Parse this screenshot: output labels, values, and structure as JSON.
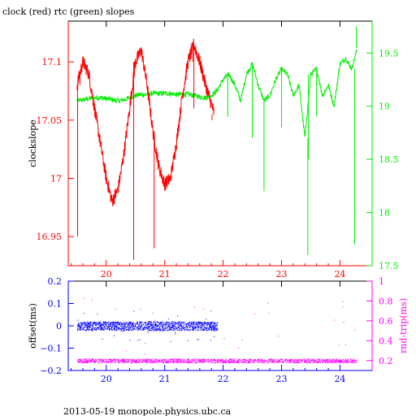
{
  "title": "clock (red) rtc (green) slopes",
  "footer": "2013-05-19  monopole.physics.ubc.ca",
  "colors": {
    "red": "#ff0000",
    "green": "#00ee00",
    "blue": "#0000ff",
    "magenta": "#ff00ff",
    "axis": "#000000"
  },
  "chart_data": [
    {
      "type": "line",
      "title": "clock (red) rtc (green) slopes",
      "xlabel": "",
      "ylabel": "clockslope",
      "y2label": "",
      "xlim": [
        19.35,
        24.55
      ],
      "ylim": [
        16.925,
        17.135
      ],
      "y2lim": [
        17.5,
        19.8
      ],
      "x_ticks": [
        20,
        21,
        22,
        23,
        24
      ],
      "y_ticks": [
        16.95,
        17,
        17.05,
        17.1
      ],
      "y_tick_labels": [
        "16.95",
        "17",
        "17.05",
        "17.1"
      ],
      "y2_ticks": [
        17.5,
        18,
        18.5,
        19,
        19.5
      ],
      "y2_tick_labels": [
        "17.5",
        "18",
        "18.5",
        "19",
        "19.5"
      ],
      "series": [
        {
          "axis": "left",
          "color": "#ff0000",
          "x": [
            19.5,
            19.6,
            19.7,
            19.8,
            19.9,
            20.0,
            20.1,
            20.2,
            20.3,
            20.4,
            20.5,
            20.6,
            20.7,
            20.8,
            20.9,
            21.0,
            21.1,
            21.2,
            21.3,
            21.4,
            21.5,
            21.6,
            21.7,
            21.85
          ],
          "y": [
            17.08,
            17.1,
            17.09,
            17.06,
            17.03,
            17.0,
            16.98,
            16.99,
            17.02,
            17.06,
            17.1,
            17.11,
            17.08,
            17.04,
            17.01,
            16.995,
            17.0,
            17.03,
            17.07,
            17.1,
            17.115,
            17.1,
            17.08,
            17.055
          ],
          "spikes": [
            {
              "x": 19.51,
              "y": 16.95
            },
            {
              "x": 19.55,
              "y": 17.09
            },
            {
              "x": 20.47,
              "y": 16.93
            },
            {
              "x": 20.48,
              "y": 17.09
            },
            {
              "x": 20.82,
              "y": 16.94
            },
            {
              "x": 21.48,
              "y": 17.1
            },
            {
              "x": 21.5,
              "y": 17.06
            },
            {
              "x": 21.81,
              "y": 17.05
            }
          ]
        },
        {
          "axis": "right",
          "color": "#00ee00",
          "x": [
            19.5,
            19.6,
            19.7,
            19.8,
            19.9,
            20.0,
            20.1,
            20.2,
            20.3,
            20.4,
            20.5,
            20.6,
            20.7,
            20.8,
            20.9,
            21.0,
            21.1,
            21.2,
            21.3,
            21.4,
            21.5,
            21.6,
            21.7,
            21.8,
            21.9,
            22.0,
            22.1,
            22.2,
            22.3,
            22.4,
            22.5,
            22.6,
            22.7,
            22.8,
            22.9,
            23.0,
            23.1,
            23.2,
            23.3,
            23.4,
            23.5,
            23.6,
            23.7,
            23.8,
            23.9,
            24.0,
            24.1,
            24.2,
            24.3
          ],
          "y": [
            19.05,
            19.06,
            19.07,
            19.08,
            19.08,
            19.07,
            19.06,
            19.05,
            19.06,
            19.08,
            19.1,
            19.11,
            19.11,
            19.12,
            19.12,
            19.12,
            19.12,
            19.11,
            19.11,
            19.11,
            19.1,
            19.09,
            19.08,
            19.1,
            19.15,
            19.25,
            19.3,
            19.2,
            19.05,
            19.3,
            19.4,
            19.2,
            19.05,
            19.1,
            19.25,
            19.35,
            19.3,
            19.1,
            19.2,
            18.7,
            19.3,
            19.35,
            19.1,
            19.2,
            19.0,
            19.4,
            19.45,
            19.35,
            19.55
          ],
          "spikes": [
            {
              "x": 22.08,
              "y": 18.9
            },
            {
              "x": 22.5,
              "y": 18.7
            },
            {
              "x": 22.7,
              "y": 18.2
            },
            {
              "x": 23.0,
              "y": 18.8
            },
            {
              "x": 23.45,
              "y": 17.6
            },
            {
              "x": 23.46,
              "y": 18.5
            },
            {
              "x": 23.6,
              "y": 18.9
            },
            {
              "x": 24.25,
              "y": 17.7
            },
            {
              "x": 24.28,
              "y": 19.75
            }
          ]
        }
      ]
    },
    {
      "type": "scatter",
      "xlabel": "",
      "ylabel": "offset(ms)",
      "y2label": "rnd-trip(ms)",
      "xlim": [
        19.35,
        24.55
      ],
      "ylim": [
        -0.2,
        0.2
      ],
      "y2lim": [
        0.1,
        1.0
      ],
      "x_ticks": [
        20,
        21,
        22,
        23,
        24
      ],
      "y_ticks": [
        -0.2,
        -0.1,
        0,
        0.1,
        0.2
      ],
      "y_tick_labels": [
        "−0.2",
        "−0.1",
        "0",
        "0.1",
        "0.2"
      ],
      "y2_ticks": [
        0.2,
        0.4,
        0.6,
        0.8,
        1.0
      ],
      "y2_tick_labels": [
        "0.2",
        "0.4",
        "0.6",
        "0.8",
        "1"
      ],
      "series": [
        {
          "axis": "left",
          "color": "#0000ff",
          "x_range": [
            19.5,
            21.9
          ],
          "center": 0.0,
          "spread": 0.02
        },
        {
          "axis": "right",
          "color": "#ff00ff",
          "x_range": [
            19.5,
            24.3
          ],
          "center": 0.2,
          "spread": 0.02
        }
      ]
    }
  ]
}
